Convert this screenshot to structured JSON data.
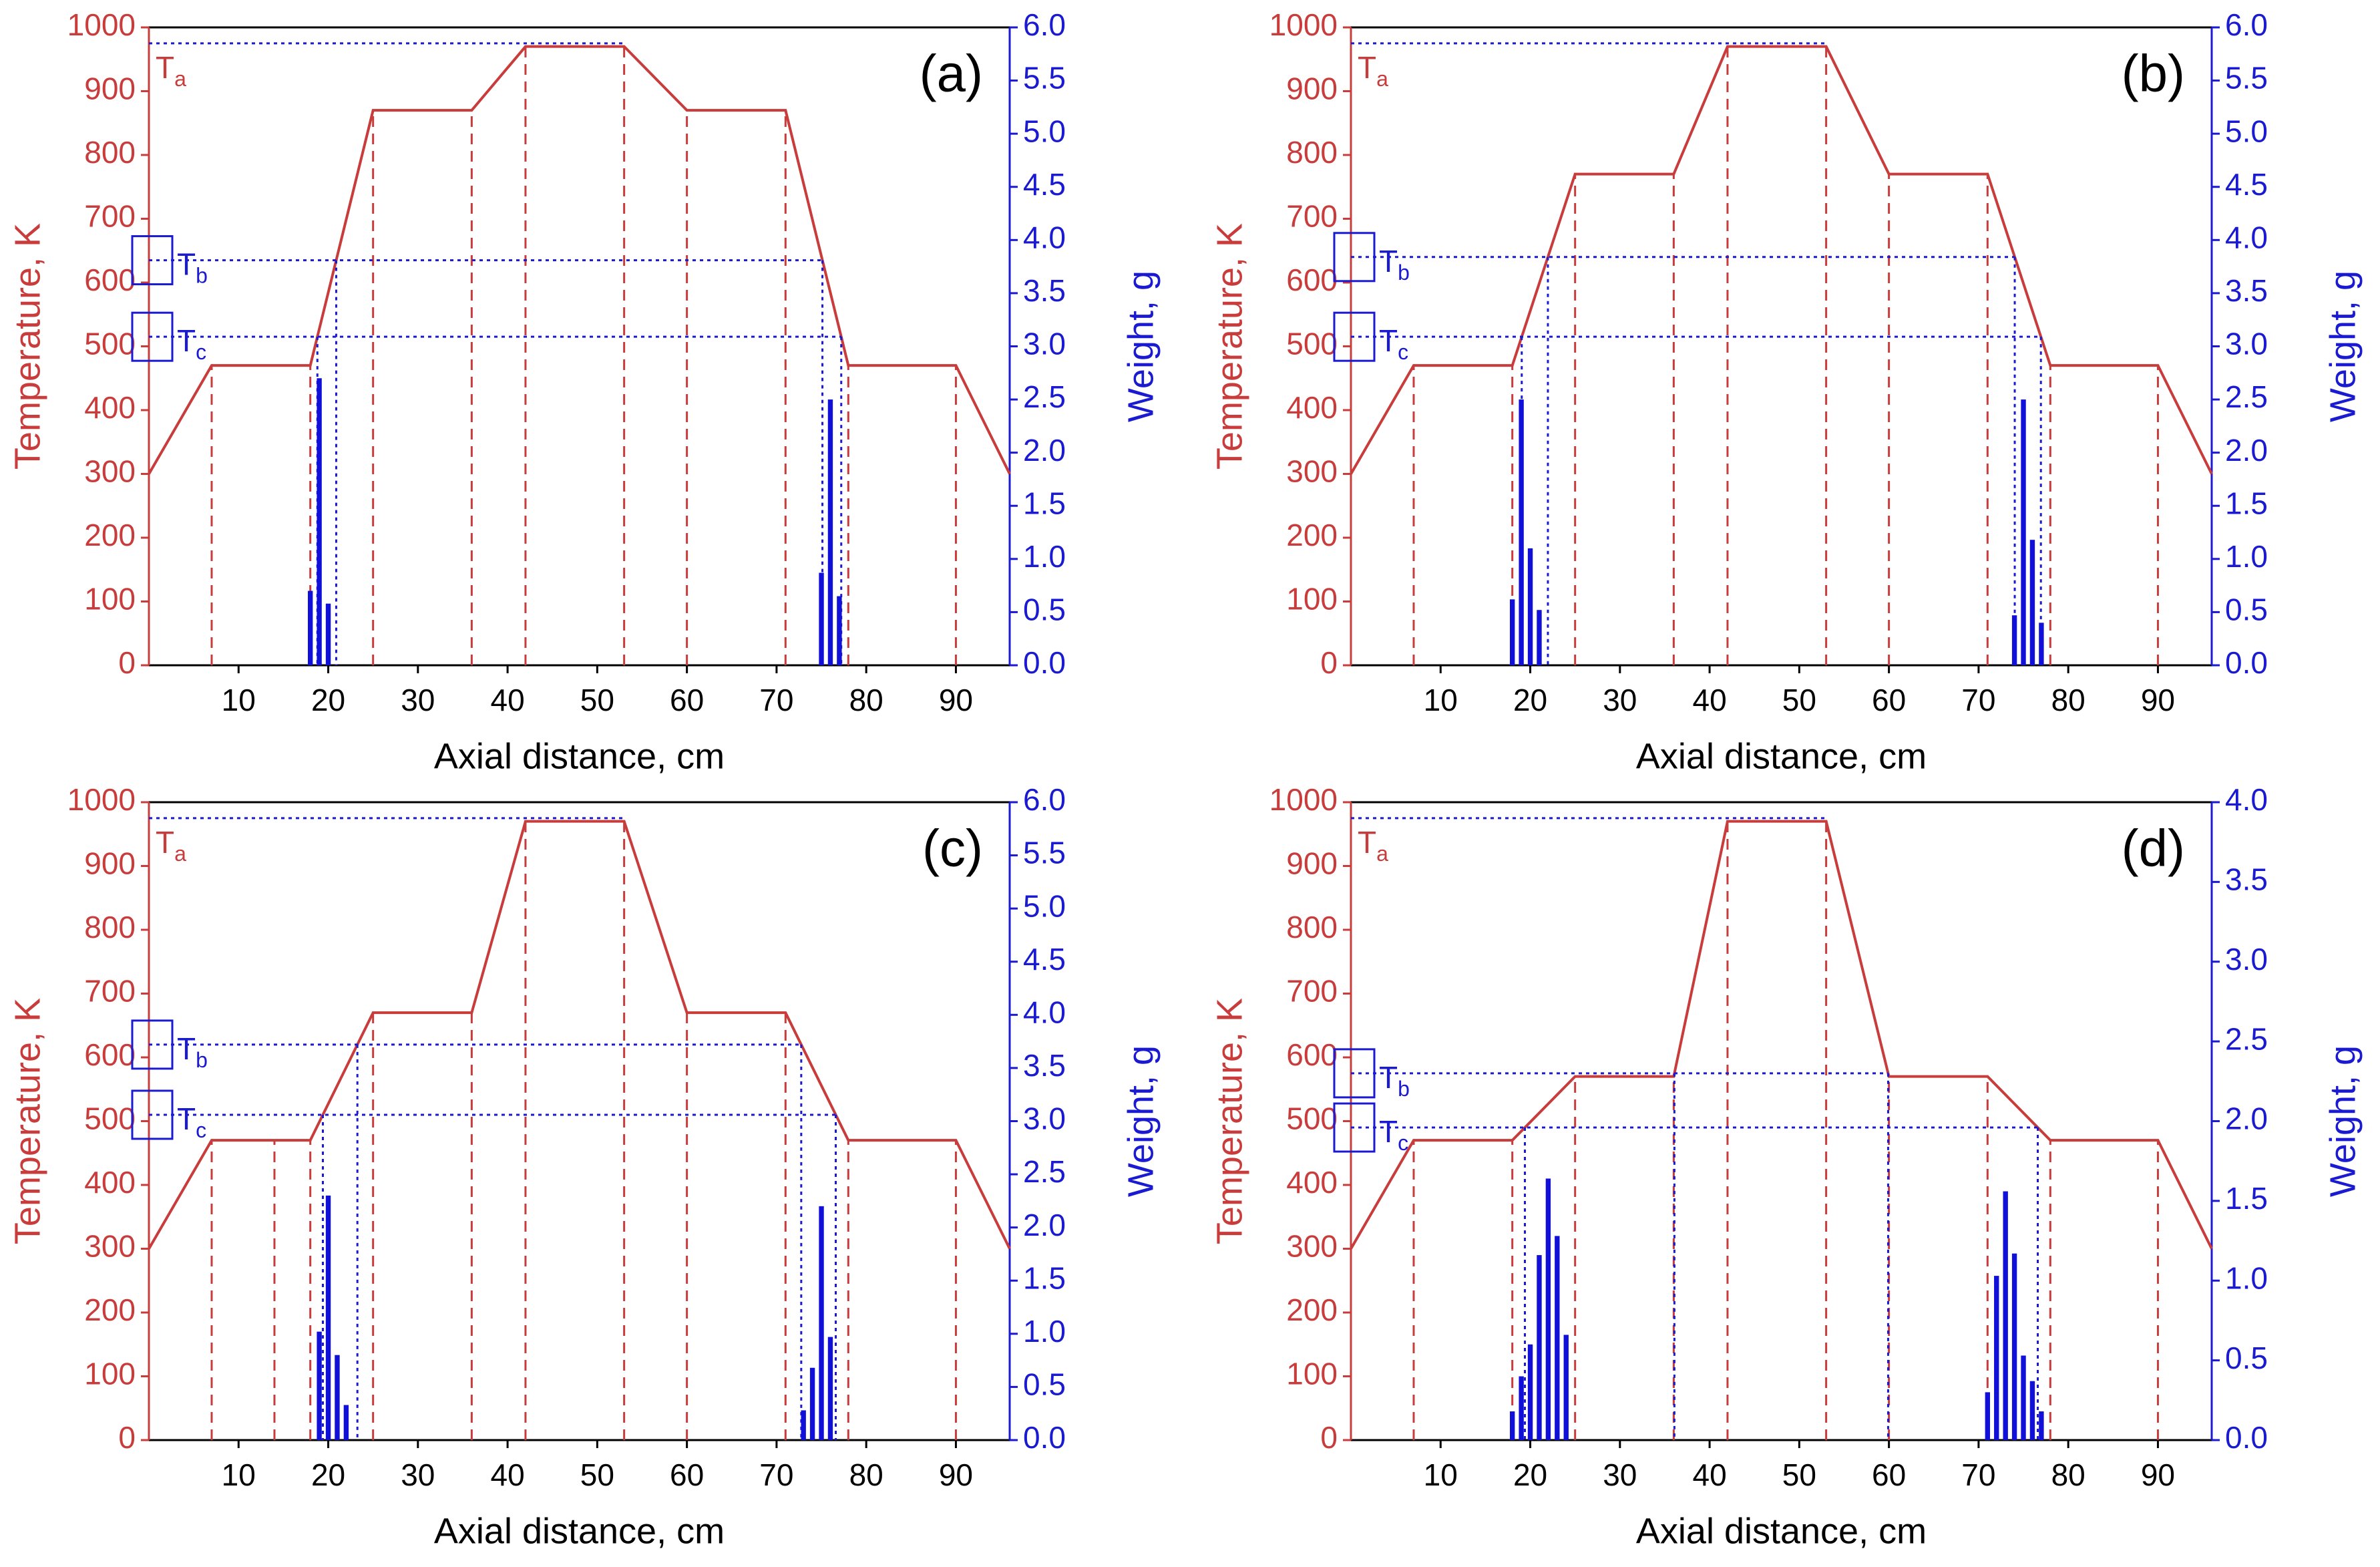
{
  "chart_data": [
    {
      "type": "combo",
      "panel_label": "(a)",
      "x_label": "Axial distance, cm",
      "y_label": "Temperature, K",
      "y2_label": "Weight, g",
      "xlim": [
        0,
        96
      ],
      "xticks": [
        10,
        20,
        30,
        40,
        50,
        60,
        70,
        80,
        90
      ],
      "ylim": [
        0,
        1000
      ],
      "yticks": [
        0,
        100,
        200,
        300,
        400,
        500,
        600,
        700,
        800,
        900,
        1000
      ],
      "y2lim": [
        0,
        6
      ],
      "y2ticks": [
        {
          "value": 0,
          "label": "0.0"
        },
        {
          "value": 0.5,
          "label": "0.5"
        },
        {
          "value": 1,
          "label": "1.0"
        },
        {
          "value": 1.5,
          "label": "1.5"
        },
        {
          "value": 2,
          "label": "2.0"
        },
        {
          "value": 2.5,
          "label": "2.5"
        },
        {
          "value": 3,
          "label": "3.0"
        },
        {
          "value": 3.5,
          "label": "3.5"
        },
        {
          "value": 4,
          "label": "4.0"
        },
        {
          "value": 4.5,
          "label": "4.5"
        },
        {
          "value": 5,
          "label": "5.0"
        },
        {
          "value": 5.5,
          "label": "5.5"
        },
        {
          "value": 6,
          "label": "6.0"
        }
      ],
      "series": [
        {
          "type": "line",
          "color": "#c83c3c",
          "x": [
            0,
            7,
            18,
            25,
            36,
            42,
            53,
            60,
            71,
            78,
            90,
            96
          ],
          "values": [
            300,
            470,
            470,
            870,
            870,
            970,
            970,
            870,
            870,
            470,
            470,
            300
          ]
        },
        {
          "type": "bar",
          "axis": "y2",
          "color": "#1010d8",
          "x": [
            18,
            19,
            20,
            75,
            76,
            77
          ],
          "values": [
            0.7,
            2.7,
            0.58,
            0.87,
            2.5,
            0.65
          ]
        }
      ],
      "reference_levels": [
        {
          "text": "T",
          "subscript": "a",
          "value": 975
        },
        {
          "text": "T",
          "subscript": "b",
          "value": 635
        },
        {
          "text": "T",
          "subscript": "c",
          "value": 515
        }
      ]
    },
    {
      "type": "combo",
      "panel_label": "(b)",
      "x_label": "Axial distance, cm",
      "y_label": "Temperature, K",
      "y2_label": "Weight, g",
      "xlim": [
        0,
        96
      ],
      "xticks": [
        10,
        20,
        30,
        40,
        50,
        60,
        70,
        80,
        90
      ],
      "ylim": [
        0,
        1000
      ],
      "yticks": [
        0,
        100,
        200,
        300,
        400,
        500,
        600,
        700,
        800,
        900,
        1000
      ],
      "y2lim": [
        0,
        6
      ],
      "y2ticks": [
        {
          "value": 0,
          "label": "0.0"
        },
        {
          "value": 0.5,
          "label": "0.5"
        },
        {
          "value": 1,
          "label": "1.0"
        },
        {
          "value": 1.5,
          "label": "1.5"
        },
        {
          "value": 2,
          "label": "2.0"
        },
        {
          "value": 2.5,
          "label": "2.5"
        },
        {
          "value": 3,
          "label": "3.0"
        },
        {
          "value": 3.5,
          "label": "3.5"
        },
        {
          "value": 4,
          "label": "4.0"
        },
        {
          "value": 4.5,
          "label": "4.5"
        },
        {
          "value": 5,
          "label": "5.0"
        },
        {
          "value": 5.5,
          "label": "5.5"
        },
        {
          "value": 6,
          "label": "6.0"
        }
      ],
      "series": [
        {
          "type": "line",
          "color": "#c83c3c",
          "x": [
            0,
            7,
            18,
            25,
            36,
            42,
            53,
            60,
            71,
            78,
            90,
            96
          ],
          "values": [
            300,
            470,
            470,
            770,
            770,
            970,
            970,
            770,
            770,
            470,
            470,
            300
          ]
        },
        {
          "type": "bar",
          "axis": "y2",
          "color": "#1010d8",
          "x": [
            18,
            19,
            20,
            21,
            74,
            75,
            76,
            77
          ],
          "values": [
            0.62,
            2.5,
            1.1,
            0.52,
            0.47,
            2.5,
            1.18,
            0.4
          ]
        }
      ],
      "reference_levels": [
        {
          "text": "T",
          "subscript": "a",
          "value": 975
        },
        {
          "text": "T",
          "subscript": "b",
          "value": 640
        },
        {
          "text": "T",
          "subscript": "c",
          "value": 515
        }
      ]
    },
    {
      "type": "combo",
      "panel_label": "(c)",
      "x_label": "Axial distance, cm",
      "y_label": "Temperature, K",
      "y2_label": "Weight, g",
      "xlim": [
        0,
        96
      ],
      "xticks": [
        10,
        20,
        30,
        40,
        50,
        60,
        70,
        80,
        90
      ],
      "ylim": [
        0,
        1000
      ],
      "yticks": [
        0,
        100,
        200,
        300,
        400,
        500,
        600,
        700,
        800,
        900,
        1000
      ],
      "y2lim": [
        0,
        6
      ],
      "y2ticks": [
        {
          "value": 0,
          "label": "0.0"
        },
        {
          "value": 0.5,
          "label": "0.5"
        },
        {
          "value": 1,
          "label": "1.0"
        },
        {
          "value": 1.5,
          "label": "1.5"
        },
        {
          "value": 2,
          "label": "2.0"
        },
        {
          "value": 2.5,
          "label": "2.5"
        },
        {
          "value": 3,
          "label": "3.0"
        },
        {
          "value": 3.5,
          "label": "3.5"
        },
        {
          "value": 4,
          "label": "4.0"
        },
        {
          "value": 4.5,
          "label": "4.5"
        },
        {
          "value": 5,
          "label": "5.0"
        },
        {
          "value": 5.5,
          "label": "5.5"
        },
        {
          "value": 6,
          "label": "6.0"
        }
      ],
      "series": [
        {
          "type": "line",
          "color": "#c83c3c",
          "x": [
            0,
            7,
            14,
            18,
            25,
            36,
            42,
            53,
            60,
            71,
            78,
            90,
            96
          ],
          "values": [
            300,
            470,
            470,
            470,
            670,
            670,
            970,
            970,
            670,
            670,
            470,
            470,
            300
          ]
        },
        {
          "type": "bar",
          "axis": "y2",
          "color": "#1010d8",
          "x": [
            19,
            20,
            21,
            22,
            73,
            74,
            75,
            76
          ],
          "values": [
            1.02,
            2.3,
            0.8,
            0.33,
            0.28,
            0.68,
            2.2,
            0.97
          ]
        }
      ],
      "reference_levels": [
        {
          "text": "T",
          "subscript": "a",
          "value": 975
        },
        {
          "text": "T",
          "subscript": "b",
          "value": 620
        },
        {
          "text": "T",
          "subscript": "c",
          "value": 510
        }
      ]
    },
    {
      "type": "combo",
      "panel_label": "(d)",
      "x_label": "Axial distance, cm",
      "y_label": "Temperature, K",
      "y2_label": "Weight, g",
      "xlim": [
        0,
        96
      ],
      "xticks": [
        10,
        20,
        30,
        40,
        50,
        60,
        70,
        80,
        90
      ],
      "ylim": [
        0,
        1000
      ],
      "yticks": [
        0,
        100,
        200,
        300,
        400,
        500,
        600,
        700,
        800,
        900,
        1000
      ],
      "y2lim": [
        0,
        4
      ],
      "y2ticks": [
        {
          "value": 0,
          "label": "0.0"
        },
        {
          "value": 0.5,
          "label": "0.5"
        },
        {
          "value": 1,
          "label": "1.0"
        },
        {
          "value": 1.5,
          "label": "1.5"
        },
        {
          "value": 2,
          "label": "2.0"
        },
        {
          "value": 2.5,
          "label": "2.5"
        },
        {
          "value": 3,
          "label": "3.0"
        },
        {
          "value": 3.5,
          "label": "3.5"
        },
        {
          "value": 4,
          "label": "4.0"
        }
      ],
      "series": [
        {
          "type": "line",
          "color": "#c83c3c",
          "x": [
            0,
            7,
            18,
            25,
            36,
            42,
            53,
            60,
            71,
            78,
            90,
            96
          ],
          "values": [
            300,
            470,
            470,
            570,
            570,
            970,
            970,
            570,
            570,
            470,
            470,
            300
          ]
        },
        {
          "type": "bar",
          "axis": "y2",
          "color": "#1010d8",
          "x": [
            18,
            19,
            20,
            21,
            22,
            23,
            24,
            71,
            72,
            73,
            74,
            75,
            76,
            77
          ],
          "values": [
            0.18,
            0.4,
            0.6,
            1.16,
            1.64,
            1.28,
            0.66,
            0.3,
            1.03,
            1.56,
            1.17,
            0.53,
            0.37,
            0.18
          ]
        }
      ],
      "reference_levels": [
        {
          "text": "T",
          "subscript": "a",
          "value": 975
        },
        {
          "text": "T",
          "subscript": "b",
          "value": 575
        },
        {
          "text": "T",
          "subscript": "c",
          "value": 490
        }
      ]
    }
  ]
}
